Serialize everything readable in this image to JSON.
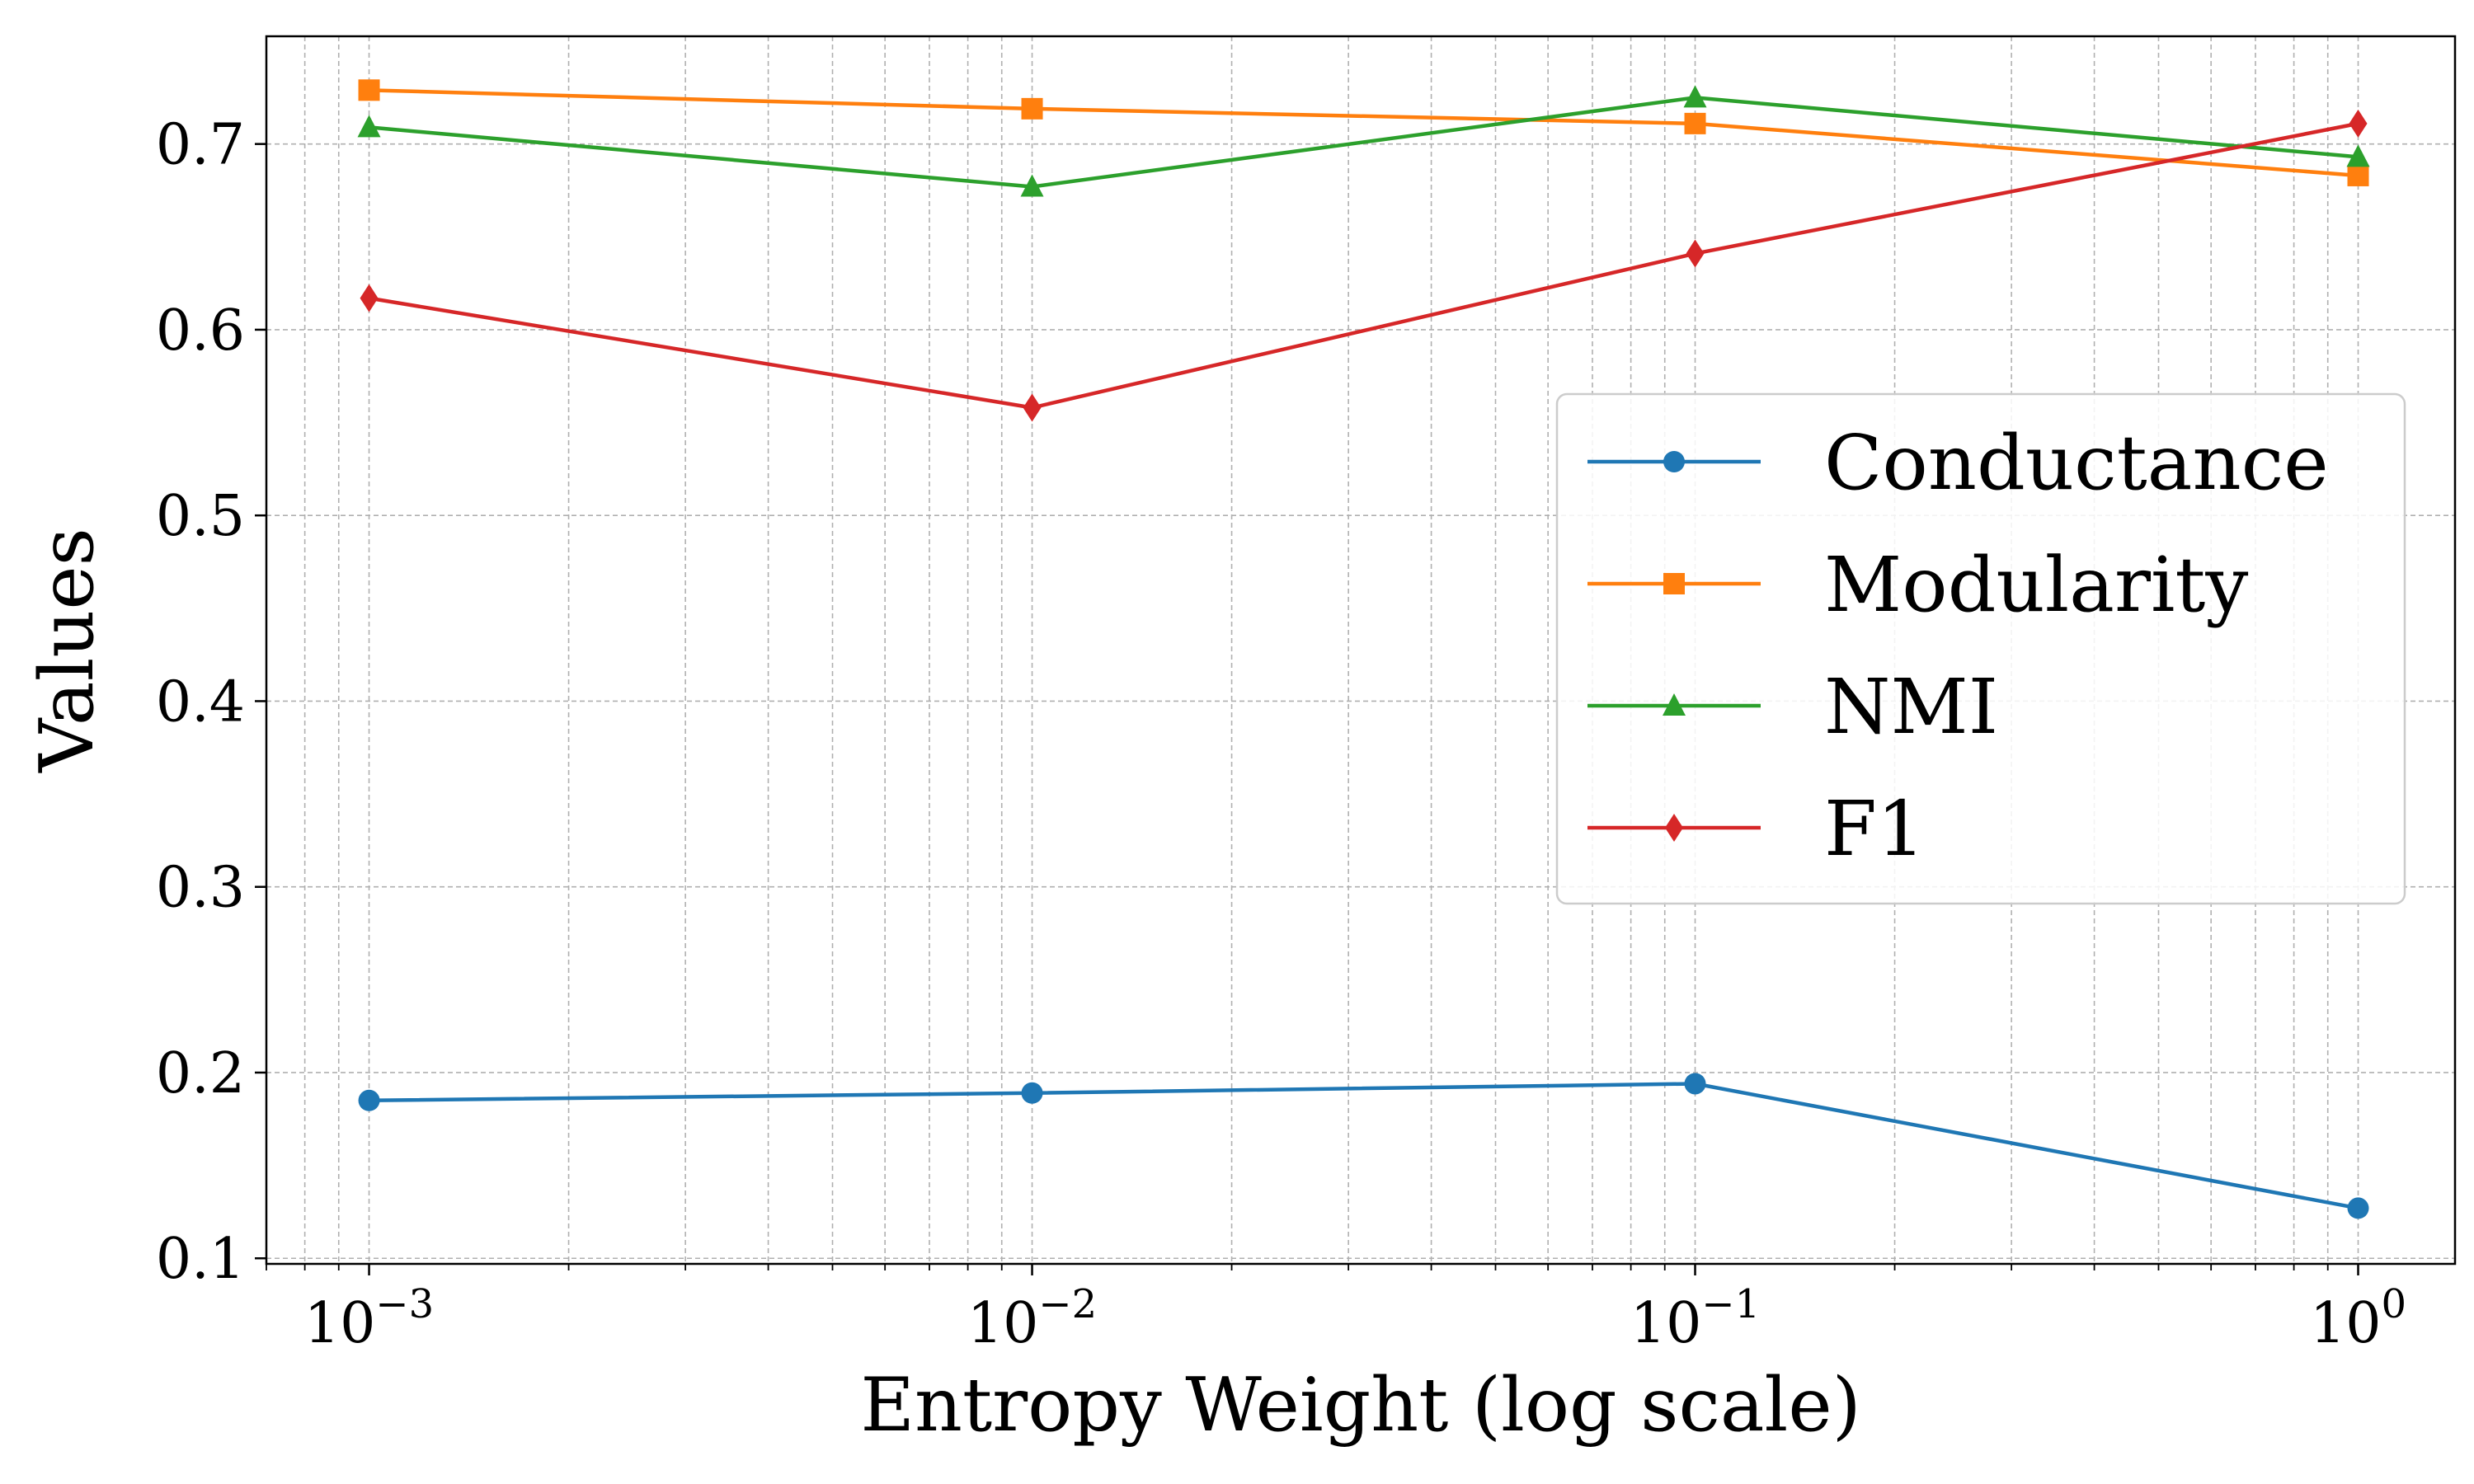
{
  "chart_data": {
    "type": "line",
    "title": "",
    "xlabel": "Entropy Weight (log scale)",
    "ylabel": "Values",
    "xscale": "log",
    "x": [
      0.001,
      0.01,
      0.1,
      1
    ],
    "xlim": [
      0.0007,
      1.4
    ],
    "ylim": [
      0.097,
      0.758
    ],
    "x_tick_labels": [
      {
        "base": "10",
        "exp": "−3"
      },
      {
        "base": "10",
        "exp": "−2"
      },
      {
        "base": "10",
        "exp": "−1"
      },
      {
        "base": "10",
        "exp": "0"
      }
    ],
    "y_ticks": [
      0.1,
      0.2,
      0.3,
      0.4,
      0.5,
      0.6,
      0.7
    ],
    "y_tick_labels": [
      "0.1",
      "0.2",
      "0.3",
      "0.4",
      "0.5",
      "0.6",
      "0.7"
    ],
    "grid": true,
    "legend_position": "center-right",
    "series": [
      {
        "name": "Conductance",
        "color": "#1f77b4",
        "marker": "circle",
        "values": [
          0.185,
          0.189,
          0.194,
          0.127
        ]
      },
      {
        "name": "Modularity",
        "color": "#ff7f0e",
        "marker": "square",
        "values": [
          0.729,
          0.719,
          0.711,
          0.683
        ]
      },
      {
        "name": "NMI",
        "color": "#2ca02c",
        "marker": "triangle",
        "values": [
          0.709,
          0.677,
          0.725,
          0.693
        ]
      },
      {
        "name": "F1",
        "color": "#d62728",
        "marker": "diamond",
        "values": [
          0.617,
          0.558,
          0.641,
          0.711
        ]
      }
    ]
  }
}
